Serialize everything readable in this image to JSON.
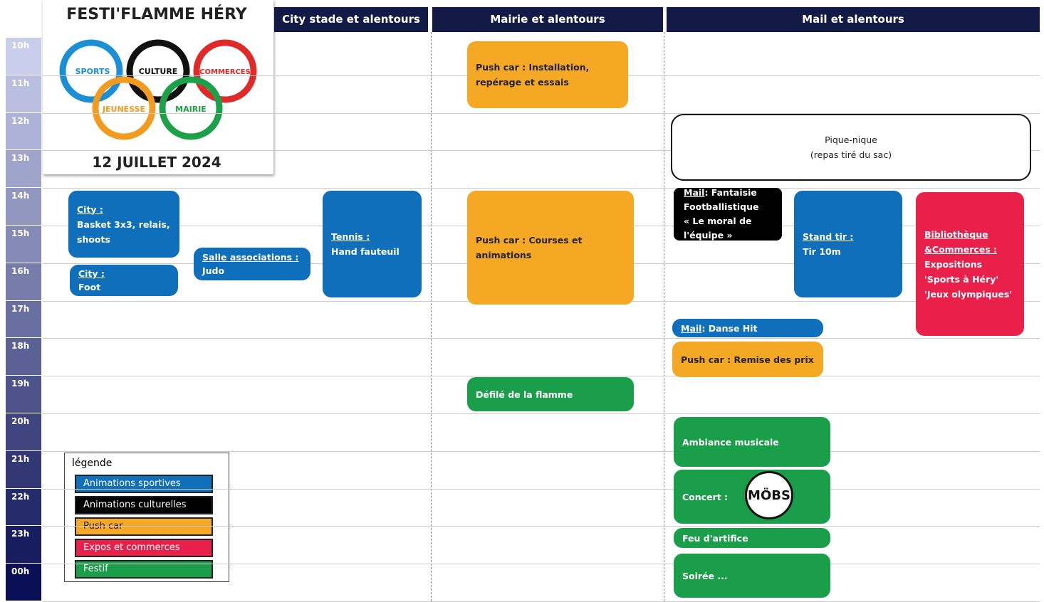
{
  "header": {
    "title": "FESTI'FLAMME HÉRY",
    "date": "12 JUILLET 2024",
    "rings": [
      "SPORTS",
      "CULTURE",
      "COMMERCES",
      "JEUNESSE",
      "MAIRIE"
    ]
  },
  "columns": [
    "City stade et alentours",
    "Mairie et alentours",
    "Mail et alentours"
  ],
  "hours": [
    "10h",
    "11h",
    "12h",
    "13h",
    "14h",
    "15h",
    "16h",
    "17h",
    "18h",
    "19h",
    "20h",
    "21h",
    "22h",
    "23h",
    "00h"
  ],
  "events": [
    {
      "label": "City :",
      "lines": [
        "Basket 3x3, relais,",
        "shoots"
      ]
    },
    {
      "label": "City :",
      "lines": [
        "Foot"
      ]
    },
    {
      "label": "Salle associations :",
      "lines": [
        "Judo"
      ]
    },
    {
      "label": "Tennis :",
      "lines": [
        "Hand fauteuil"
      ]
    },
    {
      "lines": [
        "Push car : Installation,",
        "repérage et essais"
      ]
    },
    {
      "lines": [
        "Push car : Courses et",
        "animations"
      ]
    },
    {
      "lines": [
        "Défilé de la flamme"
      ]
    },
    {
      "lines": [
        "Pique-nique",
        "(repas tiré du sac)"
      ]
    },
    {
      "label": "Mail",
      "lines": [
        ": Fantaisie",
        "Footballistique",
        "« Le moral de",
        "l'équipe »"
      ]
    },
    {
      "label": "Stand tir :",
      "lines": [
        "Tir 10m"
      ]
    },
    {
      "label": "Bibliothèque &Commerces :",
      "lines": [
        "Expositions",
        "'Sports à Héry'",
        "'Jeux olympiques'"
      ]
    },
    {
      "label": "Mail",
      "lines": [
        ": Danse Hit"
      ]
    },
    {
      "lines": [
        "Push car : Remise des prix"
      ]
    },
    {
      "lines": [
        "Ambiance musicale"
      ]
    },
    {
      "lines": [
        "Concert :"
      ],
      "badge": "MÖBS"
    },
    {
      "lines": [
        "Feu d'artifice"
      ]
    },
    {
      "lines": [
        "Soirée ..."
      ]
    }
  ],
  "legend": {
    "title": "légende",
    "items": [
      "Animations sportives",
      "Animations culturelles",
      "Push car",
      "Expos et commerces",
      "Festif"
    ]
  }
}
